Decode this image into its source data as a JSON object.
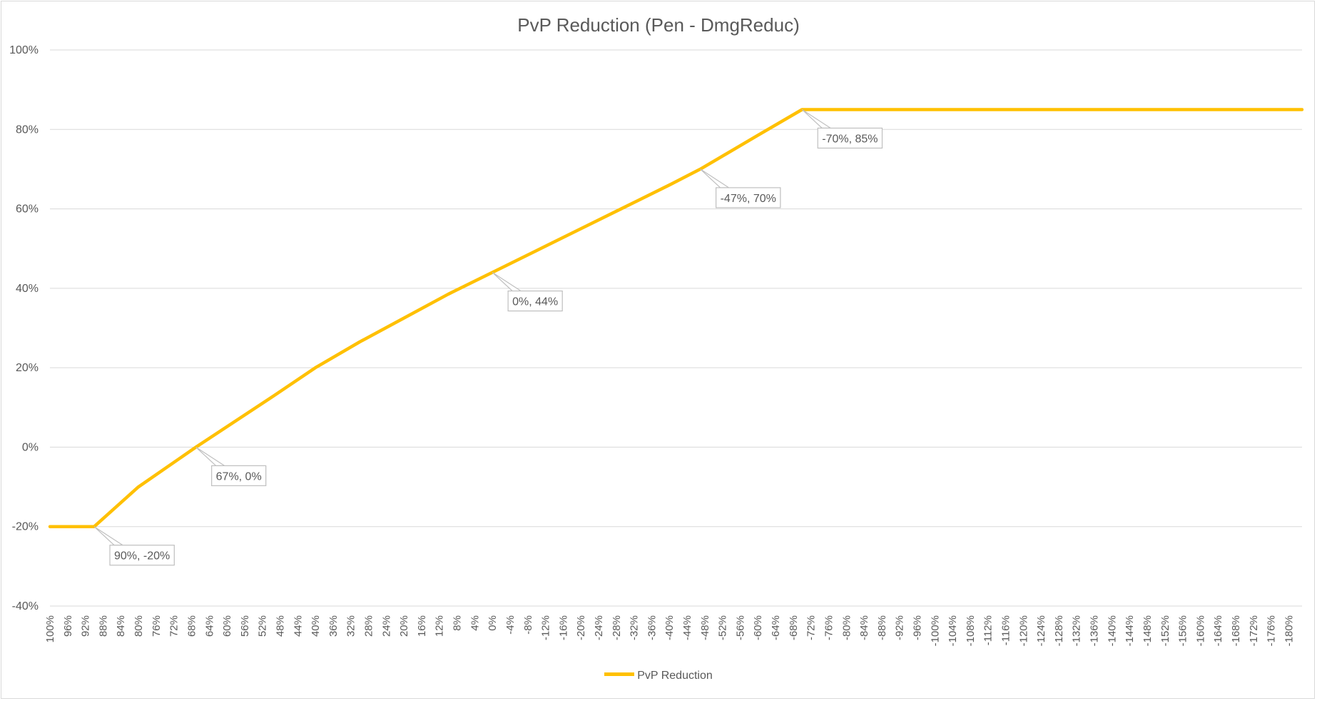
{
  "chart_data": {
    "type": "line",
    "title": "PvP Reduction (Pen - DmgReduc)",
    "xlabel": "",
    "ylabel": "",
    "ylim": [
      -40,
      100
    ],
    "yticks": [
      "100%",
      "80%",
      "60%",
      "40%",
      "20%",
      "0%",
      "-20%",
      "-40%"
    ],
    "xlim": [
      100,
      -183
    ],
    "x_ticks": [
      "100%",
      "96%",
      "92%",
      "88%",
      "84%",
      "80%",
      "76%",
      "72%",
      "68%",
      "64%",
      "60%",
      "56%",
      "52%",
      "48%",
      "44%",
      "40%",
      "36%",
      "32%",
      "28%",
      "24%",
      "20%",
      "16%",
      "12%",
      "8%",
      "4%",
      "0%",
      "-4%",
      "-8%",
      "-12%",
      "-16%",
      "-20%",
      "-24%",
      "-28%",
      "-32%",
      "-36%",
      "-40%",
      "-44%",
      "-48%",
      "-52%",
      "-56%",
      "-60%",
      "-64%",
      "-68%",
      "-72%",
      "-76%",
      "-80%",
      "-84%",
      "-88%",
      "-92%",
      "-96%",
      "-100%",
      "-104%",
      "-108%",
      "-112%",
      "-116%",
      "-120%",
      "-124%",
      "-128%",
      "-132%",
      "-136%",
      "-140%",
      "-144%",
      "-148%",
      "-152%",
      "-156%",
      "-160%",
      "-164%",
      "-168%",
      "-172%",
      "-176%",
      "-180%"
    ],
    "series": [
      {
        "name": "PvP Reduction",
        "color": "#FFC000",
        "x": [
          100,
          90,
          80,
          67,
          50,
          40,
          30,
          20,
          10,
          0,
          -10,
          -20,
          -30,
          -40,
          -47,
          -60,
          -70,
          -183
        ],
        "y": [
          -20,
          -20,
          -10,
          0,
          12.5,
          20,
          26.5,
          32.5,
          38.5,
          44,
          49.5,
          55,
          60.5,
          66,
          70,
          78.5,
          85,
          85
        ]
      }
    ],
    "annotations": [
      {
        "text": "90%, -20%",
        "x": 90,
        "y": -20
      },
      {
        "text": "67%, 0%",
        "x": 67,
        "y": 0
      },
      {
        "text": "0%, 44%",
        "x": 0,
        "y": 44
      },
      {
        "text": "-47%, 70%",
        "x": -47,
        "y": 70
      },
      {
        "text": "-70%, 85%",
        "x": -70,
        "y": 85
      }
    ],
    "grid": true,
    "legend_position": "bottom"
  }
}
